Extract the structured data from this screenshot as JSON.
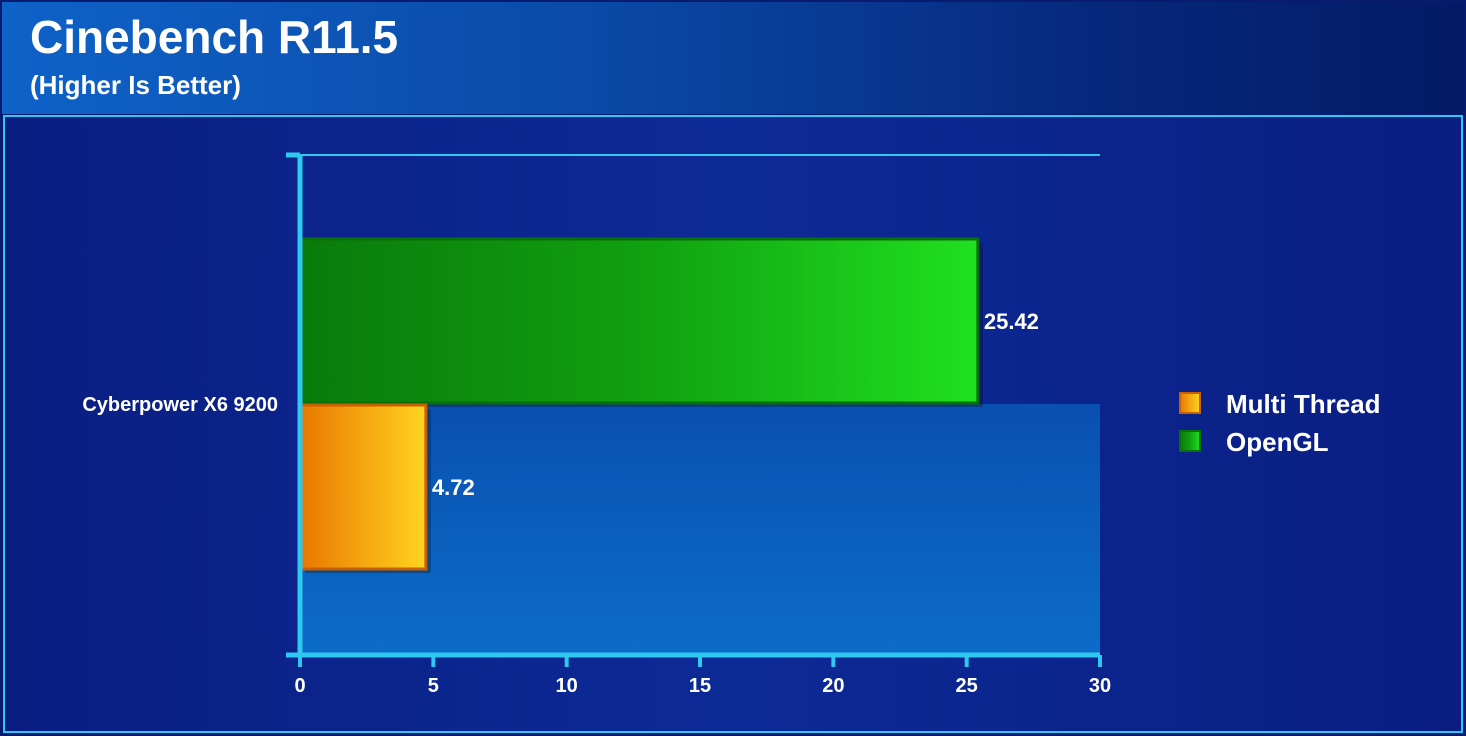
{
  "chart_data": {
    "type": "bar",
    "orientation": "horizontal",
    "title": "Cinebench R11.5",
    "subtitle": "(Higher Is Better)",
    "categories": [
      "Cyberpower X6 9200"
    ],
    "series": [
      {
        "name": "Multi Thread",
        "values": [
          4.72
        ],
        "color": "#f5a000"
      },
      {
        "name": "OpenGL",
        "values": [
          25.42
        ],
        "color": "#18c818"
      }
    ],
    "value_labels": [
      "4.72",
      "25.42"
    ],
    "xlim": [
      0,
      30
    ],
    "xticks": [
      0,
      5,
      10,
      15,
      20,
      25,
      30
    ],
    "xtick_labels": [
      "0",
      "5",
      "10",
      "15",
      "20",
      "25",
      "30"
    ],
    "legend_position": "right",
    "grid": false
  }
}
